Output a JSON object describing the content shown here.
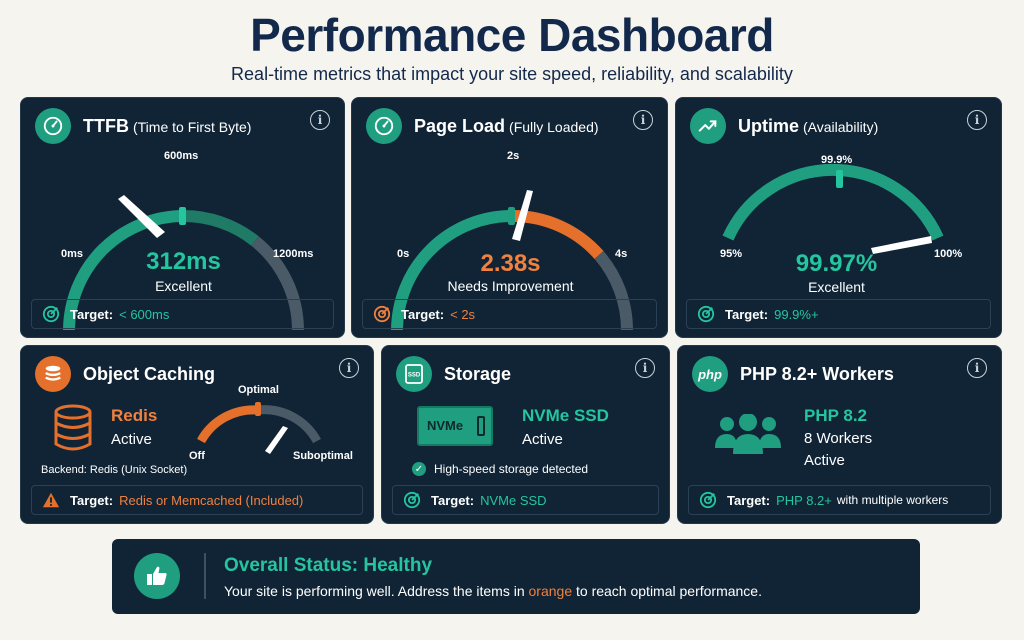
{
  "header": {
    "title": "Performance Dashboard",
    "subtitle": "Real-time metrics that impact your site speed, reliability, and scalability"
  },
  "colors": {
    "teal": "#1f9e80",
    "orange": "#e4702b",
    "card": "#102436",
    "gray": "#4a5a66"
  },
  "ttfb": {
    "title": "TTFB",
    "title_sub": "(Time to First Byte)",
    "min": "0ms",
    "mid": "600ms",
    "max": "1200ms",
    "value": "312ms",
    "status": "Excellent",
    "target_label": "Target:",
    "target_value": "< 600ms",
    "icon": "speedometer-icon"
  },
  "pageload": {
    "title": "Page Load",
    "title_sub": "(Fully Loaded)",
    "min": "0s",
    "mid": "2s",
    "max": "4s",
    "value": "2.38s",
    "status": "Needs Improvement",
    "target_label": "Target:",
    "target_value": "< 2s",
    "icon": "speedometer-icon"
  },
  "uptime": {
    "title": "Uptime",
    "title_sub": "(Availability)",
    "min": "95%",
    "mid": "99.9%",
    "max": "100%",
    "value": "99.97%",
    "status": "Excellent",
    "target_label": "Target:",
    "target_value": "99.9%+",
    "icon": "trend-up-icon"
  },
  "caching": {
    "title": "Object Caching",
    "name": "Redis",
    "status": "Active",
    "backend": "Backend: Redis (Unix Socket)",
    "gauge_mid": "Optimal",
    "gauge_min": "Off",
    "gauge_max": "Suboptimal",
    "target_label": "Target:",
    "target_value": "Redis or Memcached (Included)",
    "icon": "layers-icon"
  },
  "storage": {
    "title": "Storage",
    "chip": "NVMe",
    "name": "NVMe SSD",
    "status": "Active",
    "note": "High-speed storage detected",
    "target_label": "Target:",
    "target_value": "NVMe SSD",
    "icon": "ssd-icon",
    "icon_text": "SSD"
  },
  "php": {
    "title": "PHP 8.2+ Workers",
    "logo": "php",
    "name": "PHP 8.2",
    "workers": "8 Workers",
    "status": "Active",
    "target_label": "Target:",
    "target_value": "PHP 8.2+",
    "target_rest": "with multiple workers",
    "icon": "users-icon"
  },
  "overall": {
    "title": "Overall Status: Healthy",
    "text_before": "Your site is performing well. Address the items in",
    "text_highlight": "orange",
    "text_after": "to reach optimal performance."
  }
}
